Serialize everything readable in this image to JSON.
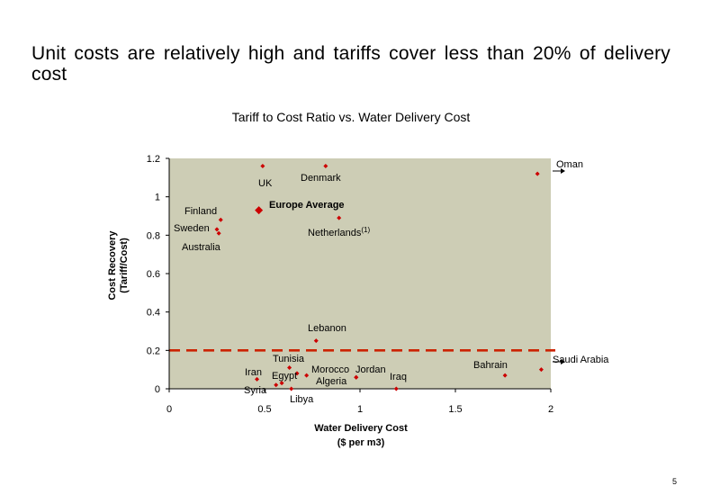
{
  "slide": {
    "title": "Unit costs are relatively high and tariffs cover less than 20% of delivery cost",
    "page_number": "5"
  },
  "colors": {
    "plot_bg": "#cdcdb5",
    "marker": "#cc0000",
    "reference_line": "#cc2200",
    "axis": "#000000"
  },
  "chart_data": {
    "type": "scatter",
    "title": "Tariff to Cost Ratio vs. Water Delivery Cost",
    "xlabel": [
      "Water Delivery Cost",
      "($ per m3)"
    ],
    "ylabel": [
      "Cost Recovery",
      "(Tariff/Cost)"
    ],
    "xlim": [
      0,
      2
    ],
    "ylim": [
      0,
      1.2
    ],
    "x_ticks": [
      {
        "value": 0,
        "label": "0"
      },
      {
        "value": 0.5,
        "label": "0.5"
      },
      {
        "value": 1,
        "label": "1"
      },
      {
        "value": 1.5,
        "label": "1.5"
      },
      {
        "value": 2,
        "label": "2"
      }
    ],
    "y_ticks": [
      {
        "value": 0,
        "label": "0"
      },
      {
        "value": 0.2,
        "label": "0.2"
      },
      {
        "value": 0.4,
        "label": "0.4"
      },
      {
        "value": 0.6,
        "label": "0.6"
      },
      {
        "value": 0.8,
        "label": "0.8"
      },
      {
        "value": 1,
        "label": "1"
      },
      {
        "value": 1.2,
        "label": "1.2"
      }
    ],
    "reference_line": {
      "y": 0.2,
      "style": "dashed"
    },
    "points": [
      {
        "name": "UK",
        "x": 0.49,
        "y": 1.16
      },
      {
        "name": "Denmark",
        "x": 0.82,
        "y": 1.16
      },
      {
        "name": "Oman",
        "x": 1.93,
        "y": 1.12
      },
      {
        "name": "Europe Average",
        "x": 0.47,
        "y": 0.93,
        "marker": "large"
      },
      {
        "name": "Netherlands",
        "x": 0.89,
        "y": 0.89
      },
      {
        "name": "Finland",
        "x": 0.27,
        "y": 0.88
      },
      {
        "name": "Sweden",
        "x": 0.25,
        "y": 0.83
      },
      {
        "name": "Australia",
        "x": 0.26,
        "y": 0.81
      },
      {
        "name": "Lebanon",
        "x": 0.77,
        "y": 0.25
      },
      {
        "name": "Tunisia",
        "x": 0.63,
        "y": 0.11
      },
      {
        "name": "Morocco",
        "x": 0.72,
        "y": 0.07
      },
      {
        "name": "Egypt",
        "x": 0.67,
        "y": 0.08
      },
      {
        "name": "Iran",
        "x": 0.46,
        "y": 0.05
      },
      {
        "name": "Syria",
        "x": 0.56,
        "y": 0.02
      },
      {
        "name": "Syria (2)",
        "x": 0.59,
        "y": 0.03
      },
      {
        "name": "Jordan",
        "x": 0.98,
        "y": 0.06
      },
      {
        "name": "Algeria",
        "x": 0.98,
        "y": 0.06
      },
      {
        "name": "Libya",
        "x": 0.64,
        "y": 0.0
      },
      {
        "name": "Iraq",
        "x": 1.19,
        "y": 0.0
      },
      {
        "name": "Bahrain",
        "x": 1.76,
        "y": 0.07
      },
      {
        "name": "Saudi Arabia",
        "x": 1.95,
        "y": 0.1
      }
    ],
    "annotations": [
      {
        "id": "uk",
        "text": "UK"
      },
      {
        "id": "denmark",
        "text": "Denmark"
      },
      {
        "id": "oman",
        "text": "Oman"
      },
      {
        "id": "finland",
        "text": "Finland"
      },
      {
        "id": "europe",
        "text": "Europe Average"
      },
      {
        "id": "sweden",
        "text": "Sweden"
      },
      {
        "id": "netherlands",
        "text": "Netherlands",
        "superscript": "(1)"
      },
      {
        "id": "australia",
        "text": "Australia"
      },
      {
        "id": "lebanon",
        "text": "Lebanon"
      },
      {
        "id": "tunisia",
        "text": "Tunisia"
      },
      {
        "id": "bahrain",
        "text": "Bahrain"
      },
      {
        "id": "saudi",
        "text": "Saudi Arabia"
      },
      {
        "id": "morocco",
        "text": "Morocco"
      },
      {
        "id": "jordan",
        "text": "Jordan"
      },
      {
        "id": "iran",
        "text": "Iran"
      },
      {
        "id": "egypt",
        "text": "Egypt"
      },
      {
        "id": "iraq",
        "text": "Iraq"
      },
      {
        "id": "algeria",
        "text": "Algeria"
      },
      {
        "id": "syria",
        "text": "Syria"
      },
      {
        "id": "libya",
        "text": "Libya"
      }
    ]
  }
}
